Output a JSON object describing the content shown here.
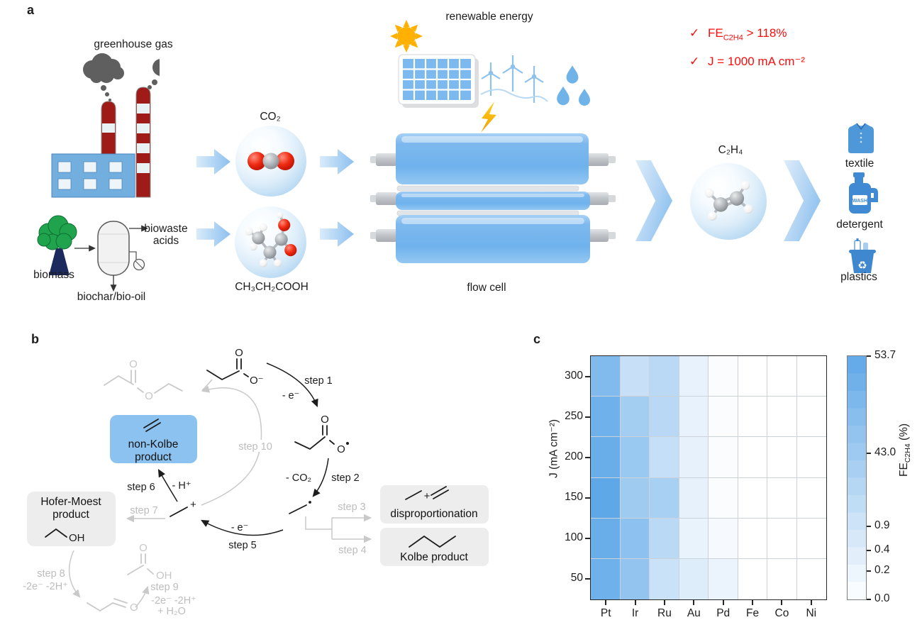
{
  "panel_a": {
    "label": "a",
    "greenhouse_gas_label": "greenhouse gas",
    "biomass_label": "biomass",
    "biowaste_line1": "biowaste",
    "biowaste_line2": "acids",
    "biochar_label": "biochar/bio-oil",
    "co2_label": "CO₂",
    "acid_label": "CH₃CH₂COOH",
    "renewable_label": "renewable energy",
    "flow_cell_label": "flow cell",
    "c2h4_label": "C₂H₄",
    "textile_label": "textile",
    "detergent_label": "detergent",
    "wash_text": "WASH",
    "plastics_label": "plastics",
    "highlights": {
      "check": "✓",
      "fe_label": "FE",
      "fe_sub": "C2H4",
      "fe_value": " > 118%",
      "j_line": "J = 1000 mA cm⁻²",
      "color": "#fb0d0c"
    }
  },
  "panel_b": {
    "label": "b",
    "steps": {
      "step1": "step 1",
      "minus_e1": "- e⁻",
      "step2": "step 2",
      "minus_co2": "- CO₂",
      "step3": "step 3",
      "step4": "step 4",
      "step5": "step 5",
      "minus_e5": "- e⁻",
      "step6": "step 6",
      "minus_h": "- H⁺",
      "step7": "step 7",
      "step8": "step 8",
      "loss8": "-2e⁻ -2H⁺",
      "step9": "step 9",
      "loss9": "-2e⁻ -2H⁺",
      "water": "+ H₂O",
      "step10": "step 10"
    },
    "boxes": {
      "non_kolbe_line1": "non-Kolbe",
      "non_kolbe_line2": "product",
      "hofer_line1": "Hofer-Moest",
      "hofer_line2": "product",
      "disproportionation": "disproportionation",
      "kolbe": "Kolbe product"
    },
    "atoms": {
      "o": "O",
      "o_minus": "O⁻",
      "oh": "OH",
      "plus": "+"
    },
    "colors": {
      "non_kolbe_fill": "#8cc2f0",
      "box_fill": "#ededed",
      "inactive": "#c6c6c6"
    }
  },
  "panel_c": {
    "label": "c"
  },
  "chart_data": {
    "type": "heatmap",
    "x_categories": [
      "Pt",
      "Ir",
      "Ru",
      "Au",
      "Pd",
      "Fe",
      "Co",
      "Ni"
    ],
    "y_categories": [
      "300",
      "250",
      "200",
      "150",
      "100",
      "50"
    ],
    "ylabel": "J (mA cm⁻²)",
    "colorbar_label_main": "FE",
    "colorbar_label_sub": "C2H4",
    "colorbar_label_unit": " (%)",
    "values": [
      [
        48.0,
        8.0,
        20.0,
        0.27,
        0.05,
        0.0,
        0.0,
        0.0
      ],
      [
        51.0,
        39.0,
        21.0,
        0.27,
        0.05,
        0.0,
        0.0,
        0.0
      ],
      [
        52.0,
        44.0,
        10.0,
        0.3,
        0.05,
        0.0,
        0.0,
        0.0
      ],
      [
        53.7,
        42.0,
        35.0,
        0.3,
        0.05,
        0.0,
        0.0,
        0.0
      ],
      [
        52.0,
        46.0,
        20.0,
        0.25,
        0.1,
        0.0,
        0.0,
        0.0
      ],
      [
        51.0,
        45.0,
        5.0,
        0.45,
        0.22,
        0.0,
        0.0,
        0.0
      ]
    ],
    "colorbar_ticks": [
      53.7,
      43.0,
      0.9,
      0.4,
      0.2,
      0.0
    ],
    "color_scale": {
      "stops": [
        [
          0.0,
          1.0
        ],
        [
          0.2,
          0.885
        ],
        [
          0.4,
          0.8
        ],
        [
          0.9,
          0.7
        ],
        [
          43.0,
          0.4
        ],
        [
          53.7,
          0.0
        ]
      ],
      "top_color": "#5fa8e8",
      "bottom_color": "#ffffff"
    },
    "grid": true,
    "legend_position": "right-colorbar"
  }
}
